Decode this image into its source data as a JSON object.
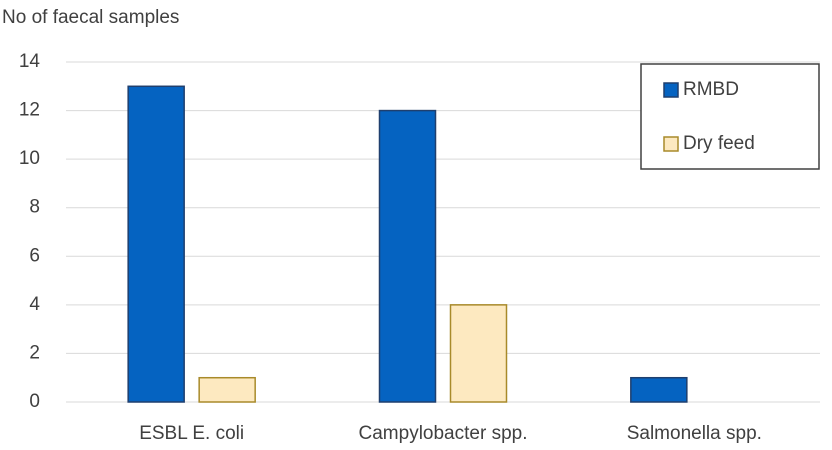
{
  "chart_data": {
    "type": "bar",
    "ylabel": "No of faecal samples",
    "categories": [
      "ESBL E. coli",
      "Campylobacter spp.",
      "Salmonella spp."
    ],
    "series": [
      {
        "name": "RMBD",
        "color": "#0563c1",
        "edgecolor": "#1f3f6e",
        "values": [
          13,
          12,
          1
        ]
      },
      {
        "name": "Dry feed",
        "color": "#fde9c0",
        "edgecolor": "#a88a2a",
        "values": [
          1,
          4,
          0
        ]
      }
    ],
    "ylim": [
      0,
      14
    ],
    "yticks": [
      0,
      2,
      4,
      6,
      8,
      10,
      12,
      14
    ],
    "grid": true,
    "legend": "top-right"
  }
}
